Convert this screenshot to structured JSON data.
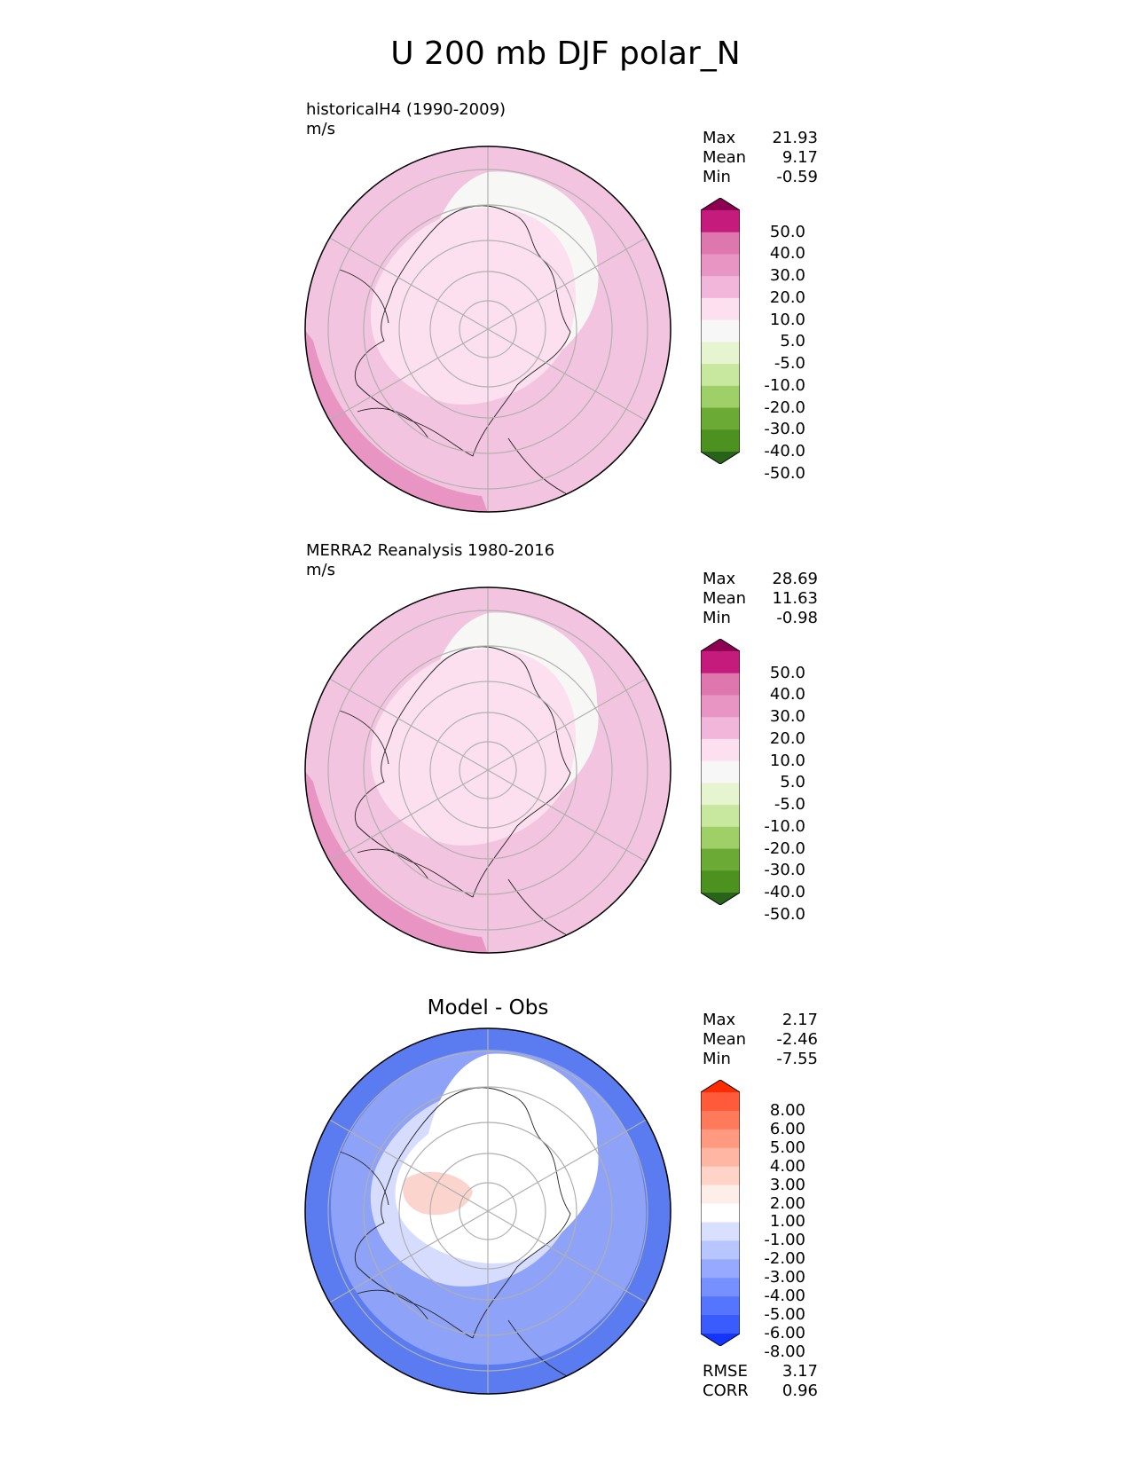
{
  "title": "U 200 mb DJF polar_N",
  "panels": [
    {
      "id": "test",
      "title_line1": "historicalH4 (1990-2009)",
      "title_line2": "m/s",
      "stats": [
        {
          "label": "Max",
          "value": "21.93"
        },
        {
          "label": "Mean",
          "value": "9.17"
        },
        {
          "label": "Min",
          "value": "-0.59"
        }
      ],
      "colorbar": {
        "levels": [
          "50.0",
          "40.0",
          "30.0",
          "20.0",
          "10.0",
          "5.0",
          "-5.0",
          "-10.0",
          "-20.0",
          "-30.0",
          "-40.0",
          "-50.0"
        ],
        "colors": [
          "#8e0152",
          "#c51b7d",
          "#de77ae",
          "#e995c4",
          "#f1b6da",
          "#fde0ef",
          "#f7f7f7",
          "#e6f5d0",
          "#c8e8a0",
          "#9fd068",
          "#6aaa35",
          "#4d9221",
          "#276419"
        ]
      },
      "field": {
        "background": "#f3c4df",
        "regions": [
          {
            "shape": "central-low-wind",
            "color": "#f7f7f6"
          },
          {
            "shape": "inner-ring",
            "color": "#fde0ef"
          },
          {
            "shape": "pacific-jet",
            "color": "#e995c4"
          }
        ]
      }
    },
    {
      "id": "ref",
      "title_line1": "MERRA2 Reanalysis 1980-2016",
      "title_line2": "m/s",
      "stats": [
        {
          "label": "Max",
          "value": "28.69"
        },
        {
          "label": "Mean",
          "value": "11.63"
        },
        {
          "label": "Min",
          "value": "-0.98"
        }
      ],
      "colorbar": {
        "levels": [
          "50.0",
          "40.0",
          "30.0",
          "20.0",
          "10.0",
          "5.0",
          "-5.0",
          "-10.0",
          "-20.0",
          "-30.0",
          "-40.0",
          "-50.0"
        ],
        "colors": [
          "#8e0152",
          "#c51b7d",
          "#de77ae",
          "#e995c4",
          "#f1b6da",
          "#fde0ef",
          "#f7f7f7",
          "#e6f5d0",
          "#c8e8a0",
          "#9fd068",
          "#6aaa35",
          "#4d9221",
          "#276419"
        ]
      },
      "field": {
        "background": "#f3c4df",
        "regions": [
          {
            "shape": "central-low-wind",
            "color": "#f7f7f6"
          },
          {
            "shape": "inner-ring",
            "color": "#fde0ef"
          },
          {
            "shape": "pacific-jet",
            "color": "#e995c4"
          }
        ]
      }
    },
    {
      "id": "diff",
      "title_center": "Model - Obs",
      "stats": [
        {
          "label": "Max",
          "value": "2.17"
        },
        {
          "label": "Mean",
          "value": "-2.46"
        },
        {
          "label": "Min",
          "value": "-7.55"
        }
      ],
      "colorbar": {
        "levels": [
          "8.00",
          "6.00",
          "5.00",
          "4.00",
          "3.00",
          "2.00",
          "1.00",
          "-1.00",
          "-2.00",
          "-3.00",
          "-4.00",
          "-5.00",
          "-6.00",
          "-8.00"
        ],
        "colors": [
          "#ff2a00",
          "#ff5a3a",
          "#ff7a5a",
          "#ff9a80",
          "#ffb6a2",
          "#fed3c8",
          "#fdeeea",
          "#ffffff",
          "#d9e0ff",
          "#b8c6ff",
          "#97a9ff",
          "#7690ff",
          "#5575ff",
          "#3a5cff",
          "#1434ff"
        ]
      },
      "extra_stats": [
        {
          "label": "RMSE",
          "value": "3.17"
        },
        {
          "label": "CORR",
          "value": "0.96"
        }
      ],
      "field": {
        "background": "#5a7cf0",
        "regions": [
          {
            "shape": "outer-band",
            "color": "#8ea2f7"
          },
          {
            "shape": "inner-ring",
            "color": "#d6dcfd"
          },
          {
            "shape": "central-low-wind",
            "color": "#ffffff"
          },
          {
            "shape": "positive-patch",
            "color": "#fbd5cd"
          }
        ]
      }
    }
  ],
  "chart_data": [
    {
      "type": "heatmap",
      "projection": "north-polar-stereographic",
      "title": "historicalH4 (1990-2009)",
      "units": "m/s",
      "colorbar_ticks": [
        50.0,
        40.0,
        30.0,
        20.0,
        10.0,
        5.0,
        -5.0,
        -10.0,
        -20.0,
        -30.0,
        -40.0,
        -50.0
      ],
      "stats": {
        "max": 21.93,
        "mean": 9.17,
        "min": -0.59
      },
      "grid": true
    },
    {
      "type": "heatmap",
      "projection": "north-polar-stereographic",
      "title": "MERRA2 Reanalysis 1980-2016",
      "units": "m/s",
      "colorbar_ticks": [
        50.0,
        40.0,
        30.0,
        20.0,
        10.0,
        5.0,
        -5.0,
        -10.0,
        -20.0,
        -30.0,
        -40.0,
        -50.0
      ],
      "stats": {
        "max": 28.69,
        "mean": 11.63,
        "min": -0.98
      },
      "grid": true
    },
    {
      "type": "heatmap",
      "projection": "north-polar-stereographic",
      "title": "Model - Obs",
      "colorbar_ticks": [
        8.0,
        6.0,
        5.0,
        4.0,
        3.0,
        2.0,
        1.0,
        -1.0,
        -2.0,
        -3.0,
        -4.0,
        -5.0,
        -6.0,
        -8.0
      ],
      "stats": {
        "max": 2.17,
        "mean": -2.46,
        "min": -7.55,
        "rmse": 3.17,
        "corr": 0.96
      },
      "grid": true
    }
  ]
}
